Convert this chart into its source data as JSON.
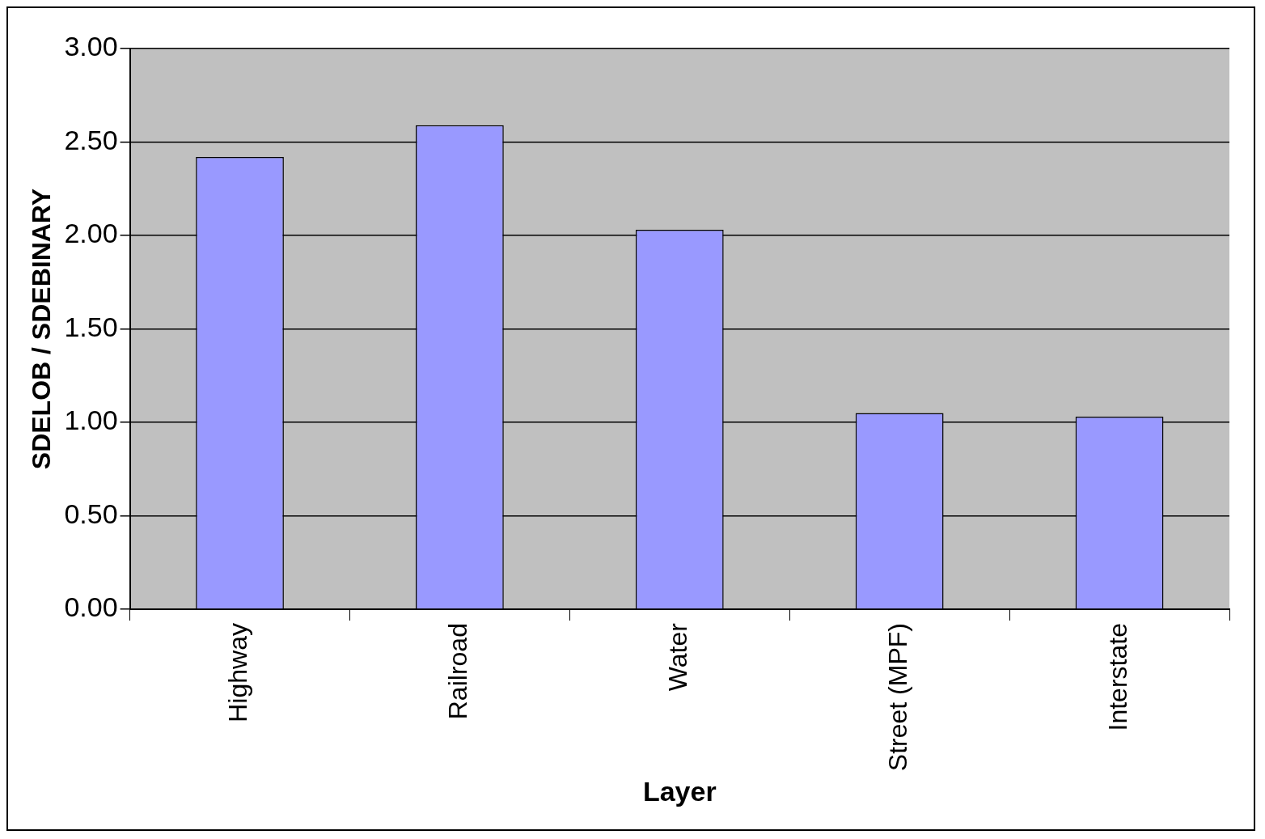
{
  "chart_data": {
    "type": "bar",
    "xlabel": "Layer",
    "ylabel": "SDELOB / SDEBINARY",
    "categories": [
      "Highway",
      "Railroad",
      "Water",
      "Street (MPF)",
      "Interstate"
    ],
    "values": [
      2.42,
      2.59,
      2.03,
      1.05,
      1.03
    ],
    "color": "#9999ff",
    "ylim": [
      0,
      3
    ],
    "yticks": [
      {
        "value": 0,
        "label": "0.00"
      },
      {
        "value": 0.5,
        "label": "0.50"
      },
      {
        "value": 1,
        "label": "1.00"
      },
      {
        "value": 1.5,
        "label": "1.50"
      },
      {
        "value": 2,
        "label": "2.00"
      },
      {
        "value": 2.5,
        "label": "2.50"
      },
      {
        "value": 3,
        "label": "3.00"
      }
    ],
    "grid": "y",
    "legend": false
  }
}
